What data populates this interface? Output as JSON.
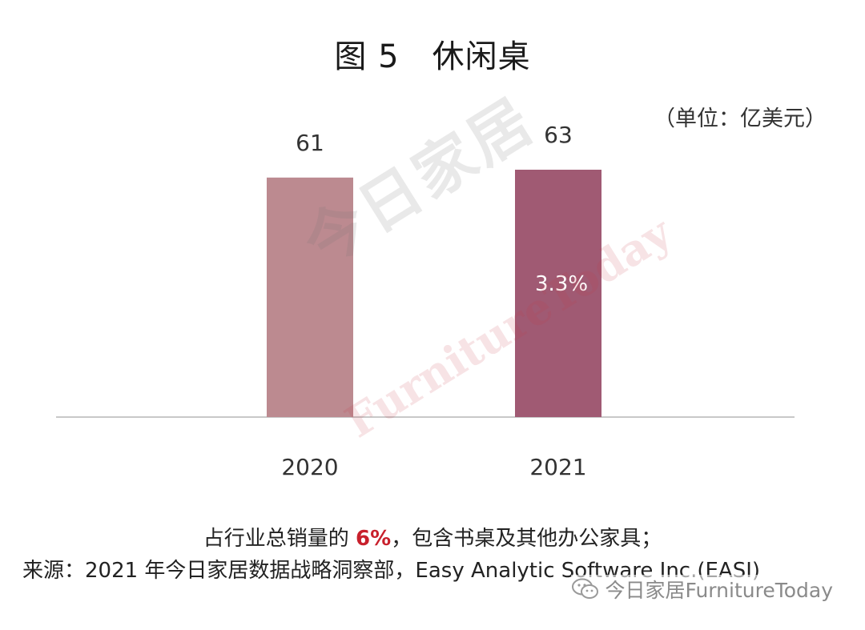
{
  "title": "图 5　休闲桌",
  "unit_label": "（单位：亿美元）",
  "watermark": {
    "cn": "今日家居",
    "en": "FurnitureToday"
  },
  "notes": {
    "line1_prefix": "占行业总销量的 ",
    "line1_highlight": "6%",
    "line1_suffix": "，包含书桌及其他办公家具；",
    "line2": "来源：2021 年今日家居数据战略洞察部，Easy Analytic Software Inc.(EASI)"
  },
  "footer_brand": "今日家居FurnitureToday",
  "colors": {
    "bar_2020": "#bc8a90",
    "bar_2021": "#a05a73",
    "axis": "#c8c8c8",
    "highlight": "#c8202c"
  },
  "chart_data": {
    "type": "bar",
    "categories": [
      "2020",
      "2021"
    ],
    "values": [
      61,
      63
    ],
    "data_labels": [
      "61",
      "63"
    ],
    "growth_label": "3.3%",
    "ylabel": "",
    "xlabel": "",
    "ylim": [
      0,
      68
    ],
    "grid": false,
    "legend": "none"
  }
}
